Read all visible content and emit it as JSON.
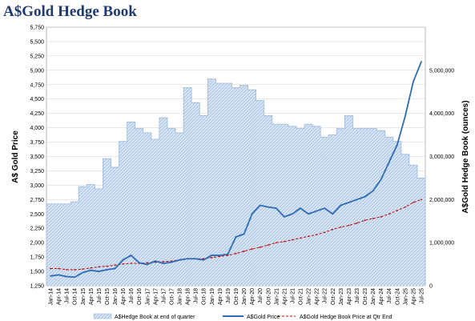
{
  "chart_data": {
    "type": "area",
    "title": "A$Gold Hedge Book",
    "ylabel_left": "A$ Gold Price",
    "ylabel_right": "A$Gold Hedge Book (ounces)",
    "y_left_range": [
      1250,
      5750
    ],
    "y_left_ticks": [
      "1,250",
      "1,500",
      "1,750",
      "2,000",
      "2,250",
      "2,500",
      "2,750",
      "3,000",
      "3,250",
      "3,500",
      "3,750",
      "4,000",
      "4,250",
      "4,500",
      "4,750",
      "5,000",
      "5,250",
      "5,500",
      "5,750"
    ],
    "y_right_range": [
      0,
      6000000
    ],
    "y_right_ticks": [
      "0",
      "1,000,000",
      "2,000,000",
      "3,000,000",
      "4,000,000",
      "5,000,000"
    ],
    "grid": true,
    "legend_position": "bottom",
    "colors": {
      "hedge_fill": "#c6d9ef",
      "hedge_line": "#9db9dc",
      "price": "#2e6bb5",
      "hedge_price": "#c00000"
    },
    "x_labels": [
      "Jan-14",
      "Apr-14",
      "Jul-14",
      "Oct-14",
      "Jan-15",
      "Apr-15",
      "Jul-15",
      "Oct-15",
      "Jan-16",
      "Apr-16",
      "Jul-16",
      "Oct-16",
      "Jan-17",
      "Apr-17",
      "Jul-17",
      "Oct-17",
      "Jan-18",
      "Apr-18",
      "Jul-18",
      "Oct-18",
      "Jan-19",
      "Apr-19",
      "Jul-19",
      "Oct-19",
      "Jan-20",
      "Apr-20",
      "Jul-20",
      "Oct-20",
      "Jan-21",
      "Apr-21",
      "Jul-21",
      "Oct-21",
      "Jan-22",
      "Apr-22",
      "Jul-22",
      "Oct-22",
      "Jan-23",
      "Apr-23",
      "Jul-23",
      "Oct-23",
      "Jan-24",
      "Apr-24",
      "Jul-24",
      "Oct-24",
      "Jan-25",
      "Apr-25",
      "Jul-25"
    ],
    "series": [
      {
        "name": "A$Hedge Book at end of quarter",
        "kind": "area",
        "axis": "right",
        "values": [
          1900000,
          1900000,
          1900000,
          1950000,
          2300000,
          2350000,
          2250000,
          2950000,
          2750000,
          3350000,
          3800000,
          3650000,
          3550000,
          3400000,
          3900000,
          3650000,
          3550000,
          4600000,
          4250000,
          3950000,
          4800000,
          4700000,
          4700000,
          4600000,
          4650000,
          4550000,
          4300000,
          3950000,
          3750000,
          3750000,
          3700000,
          3650000,
          3750000,
          3700000,
          3450000,
          3500000,
          3650000,
          3950000,
          3650000,
          3650000,
          3650000,
          3600000,
          3450000,
          3350000,
          3050000,
          2800000,
          2500000
        ]
      },
      {
        "name": "A$Gold Price",
        "kind": "line",
        "axis": "left",
        "values": [
          1420,
          1440,
          1410,
          1400,
          1480,
          1520,
          1500,
          1530,
          1550,
          1700,
          1780,
          1650,
          1620,
          1680,
          1640,
          1660,
          1700,
          1720,
          1720,
          1700,
          1780,
          1780,
          1800,
          2100,
          2150,
          2500,
          2650,
          2620,
          2600,
          2450,
          2500,
          2600,
          2500,
          2550,
          2600,
          2500,
          2650,
          2700,
          2750,
          2800,
          2900,
          3100,
          3400,
          3700,
          4200,
          4800,
          5150
        ]
      },
      {
        "name": "A$Gold Hedge Book Price at Qtr End",
        "kind": "line",
        "axis": "left",
        "style": "dashed",
        "values": [
          1550,
          1550,
          1530,
          1530,
          1540,
          1560,
          1580,
          1590,
          1610,
          1630,
          1640,
          1640,
          1650,
          1660,
          1670,
          1680,
          1700,
          1720,
          1720,
          1720,
          1740,
          1760,
          1780,
          1810,
          1850,
          1890,
          1920,
          1960,
          2000,
          2020,
          2050,
          2080,
          2110,
          2140,
          2180,
          2230,
          2270,
          2300,
          2340,
          2390,
          2420,
          2450,
          2500,
          2560,
          2620,
          2700,
          2750
        ]
      }
    ]
  }
}
